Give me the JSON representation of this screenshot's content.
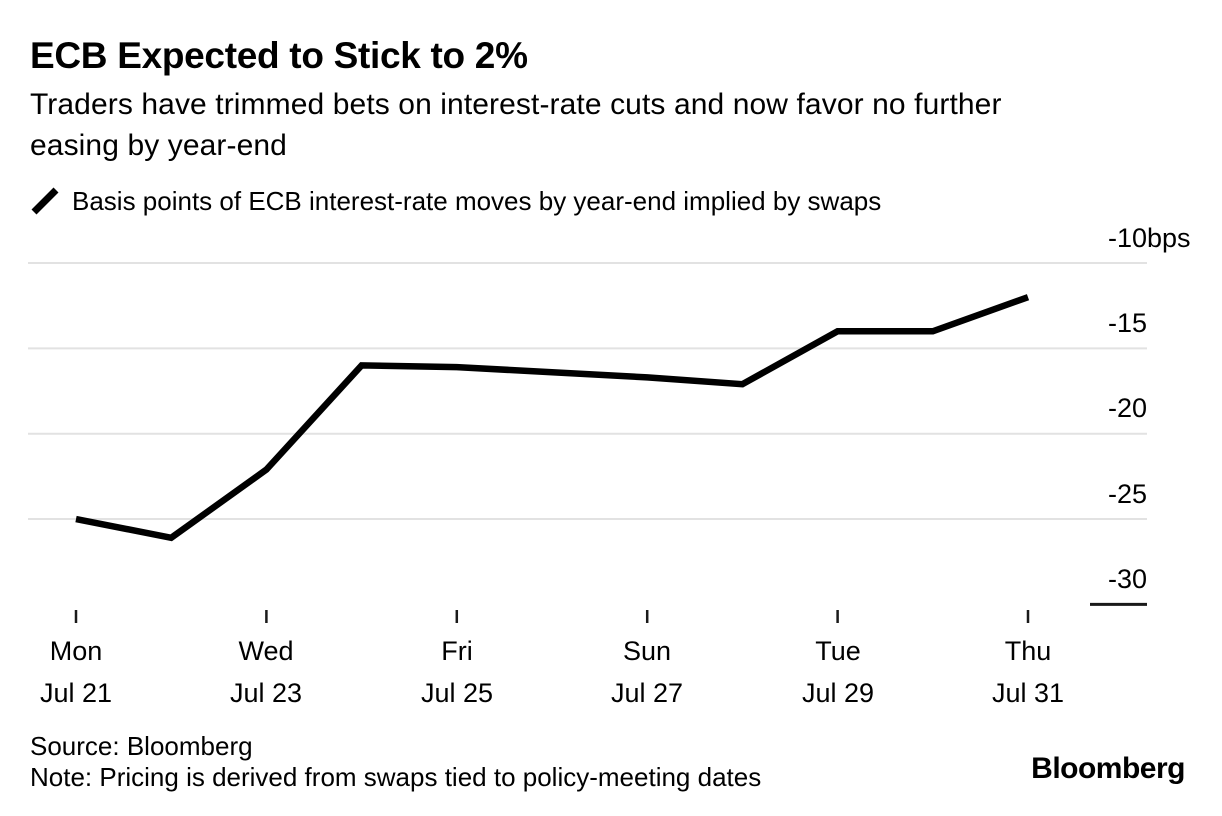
{
  "header": {
    "title": "ECB Expected to Stick to 2%",
    "subtitle_line1": "Traders have trimmed bets on interest-rate cuts and now favor no further",
    "subtitle_line2": "easing by year-end"
  },
  "legend": {
    "series_label": "Basis points of ECB interest-rate moves by year-end implied by swaps"
  },
  "chart_data": {
    "type": "line",
    "title": "ECB Expected to Stick to 2%",
    "subtitle": "Traders have trimmed bets on interest-rate cuts and now favor no further easing by year-end",
    "ylabel": "Basis points of ECB interest-rate moves by year-end implied by swaps",
    "unit": "bps",
    "ylim": [
      -30,
      -10
    ],
    "grid": "horizontal",
    "legend_position": "top-left",
    "x": [
      "Jul 21",
      "Jul 22",
      "Jul 23",
      "Jul 24",
      "Jul 25",
      "Jul 26",
      "Jul 27",
      "Jul 28",
      "Jul 29",
      "Jul 30",
      "Jul 31"
    ],
    "series": [
      {
        "name": "Basis points of ECB interest-rate moves by year-end implied by swaps",
        "values": [
          -25,
          -26.1,
          -22.1,
          -16,
          -16.1,
          -16.4,
          -16.7,
          -17.1,
          -14,
          -14,
          -12
        ]
      }
    ],
    "y_ticks": [
      {
        "value": -10,
        "label": "-10",
        "unit": "bps"
      },
      {
        "value": -15,
        "label": "-15"
      },
      {
        "value": -20,
        "label": "-20"
      },
      {
        "value": -25,
        "label": "-25"
      },
      {
        "value": -30,
        "label": "-30",
        "dark_tick": true
      }
    ],
    "x_ticks": [
      {
        "index": 0,
        "day": "Mon",
        "date": "Jul 21"
      },
      {
        "index": 2,
        "day": "Wed",
        "date": "Jul 23"
      },
      {
        "index": 4,
        "day": "Fri",
        "date": "Jul 25"
      },
      {
        "index": 6,
        "day": "Sun",
        "date": "Jul 27"
      },
      {
        "index": 8,
        "day": "Tue",
        "date": "Jul 29"
      },
      {
        "index": 10,
        "day": "Thu",
        "date": "Jul 31"
      }
    ],
    "colors": {
      "line": "#000000",
      "grid": "#e2e2e2",
      "axis_tick": "#1a1a1a"
    }
  },
  "footer": {
    "source": "Source: Bloomberg",
    "note": "Note: Pricing is derived from swaps tied to policy-meeting dates",
    "logo": "Bloomberg"
  }
}
